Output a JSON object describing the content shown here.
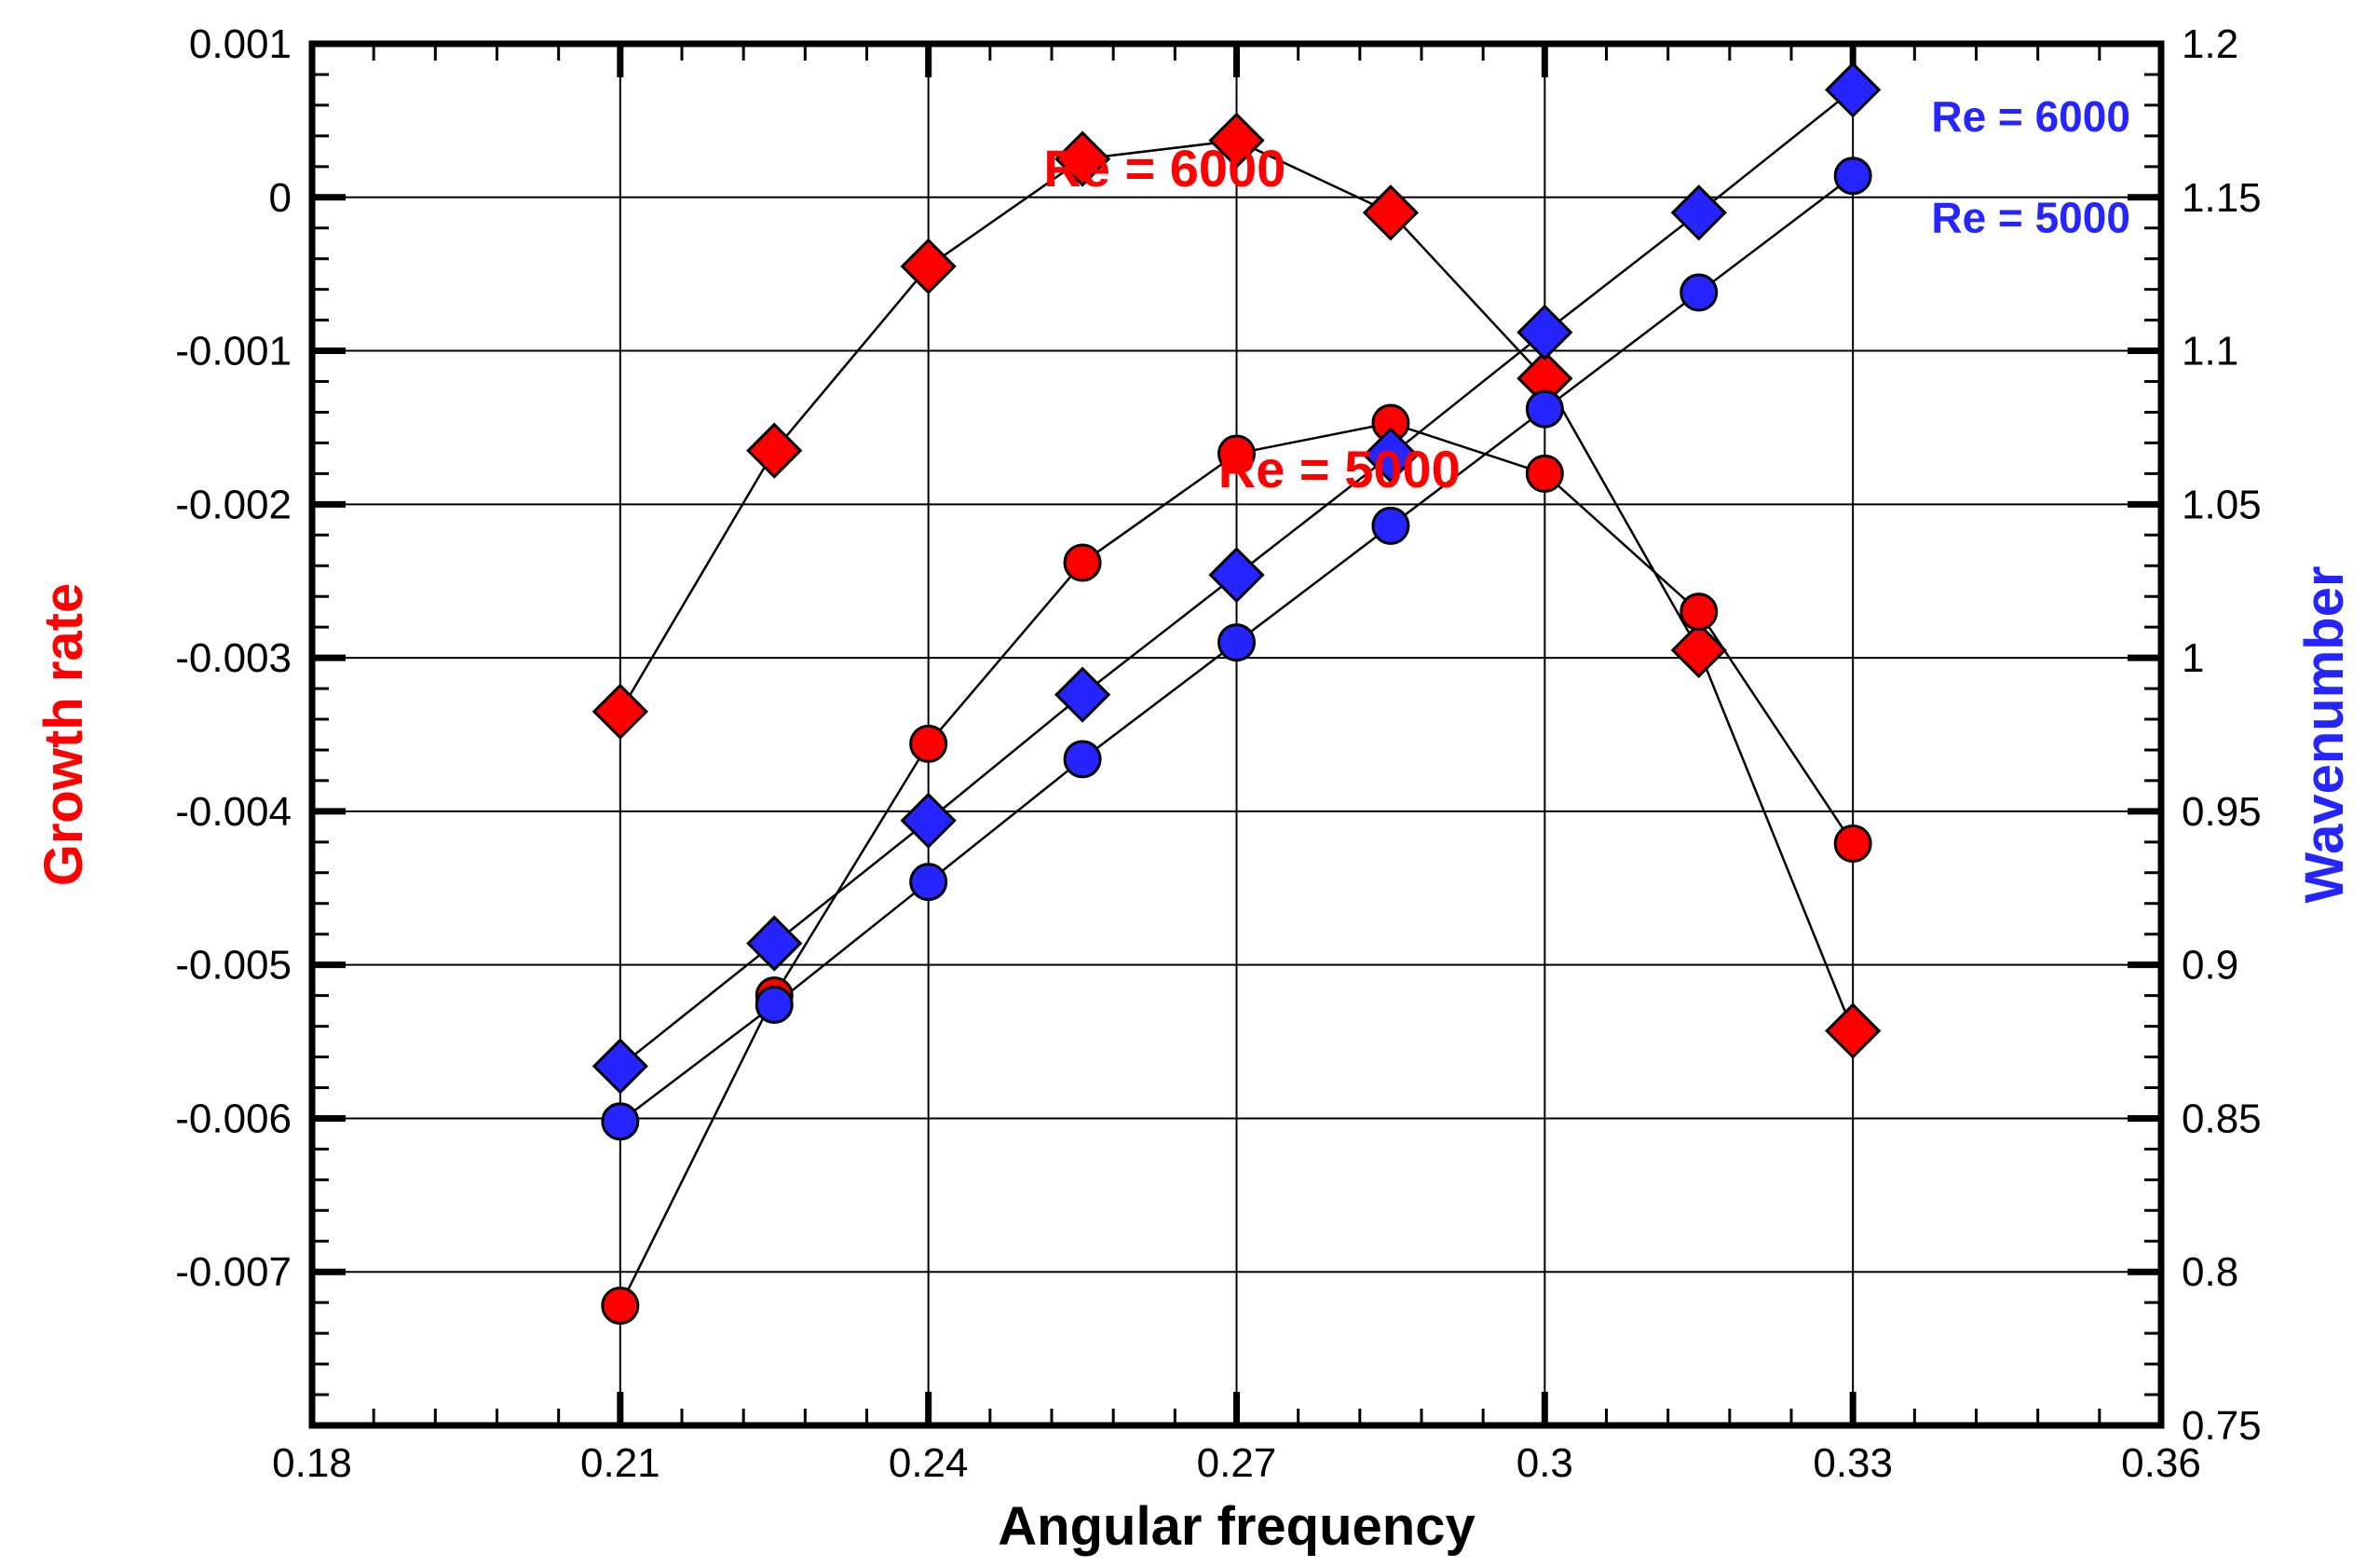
{
  "chart_data": {
    "type": "scatter",
    "title": "",
    "xlabel": "Angular frequency",
    "ylabel_left": "Growth rate",
    "ylabel_right": "Wavenumber",
    "xlim": [
      0.18,
      0.36
    ],
    "ylim_left": [
      -0.008,
      0.001
    ],
    "ylim_right": [
      0.75,
      1.2
    ],
    "grid": true,
    "x_ticks": [
      "0.18",
      "0.21",
      "0.24",
      "0.27",
      "0.3",
      "0.33",
      "0.36"
    ],
    "x_tick_values": [
      0.18,
      0.21,
      0.24,
      0.27,
      0.3,
      0.33,
      0.36
    ],
    "left_ticks": [
      "0.001",
      "0",
      "-0.001",
      "-0.002",
      "-0.003",
      "-0.004",
      "-0.005",
      "-0.006",
      "-0.007"
    ],
    "left_tick_values": [
      0.001,
      0,
      -0.001,
      -0.002,
      -0.003,
      -0.004,
      -0.005,
      -0.006,
      -0.007
    ],
    "right_ticks": [
      "1.2",
      "1.15",
      "1.1",
      "1.05",
      "1",
      "0.95",
      "0.9",
      "0.85",
      "0.8",
      "0.75"
    ],
    "right_tick_values": [
      1.2,
      1.15,
      1.1,
      1.05,
      1.0,
      0.95,
      0.9,
      0.85,
      0.8,
      0.75
    ],
    "series": [
      {
        "name": "Growth rate, Re = 6000",
        "axis": "left",
        "marker": "diamond",
        "color": "#ff0000",
        "x": [
          0.21,
          0.225,
          0.24,
          0.255,
          0.27,
          0.285,
          0.3,
          0.315,
          0.33
        ],
        "y": [
          -0.00335,
          -0.00165,
          -0.00045,
          0.00025,
          0.00037,
          -0.0001,
          -0.00118,
          -0.00295,
          -0.00543
        ]
      },
      {
        "name": "Growth rate, Re = 5000",
        "axis": "left",
        "marker": "circle",
        "color": "#ff0000",
        "x": [
          0.21,
          0.225,
          0.24,
          0.255,
          0.27,
          0.285,
          0.3,
          0.315,
          0.33
        ],
        "y": [
          -0.00722,
          -0.0052,
          -0.00356,
          -0.00238,
          -0.00167,
          -0.00147,
          -0.0018,
          -0.0027,
          -0.00421
        ]
      },
      {
        "name": "Wavenumber, Re = 6000",
        "axis": "right",
        "marker": "diamond",
        "color": "#2525ff",
        "x": [
          0.21,
          0.225,
          0.24,
          0.255,
          0.27,
          0.285,
          0.3,
          0.315,
          0.33
        ],
        "y": [
          0.867,
          0.907,
          0.947,
          0.988,
          1.027,
          1.066,
          1.106,
          1.145,
          1.185
        ]
      },
      {
        "name": "Wavenumber, Re = 5000",
        "axis": "right",
        "marker": "circle",
        "color": "#2525ff",
        "x": [
          0.21,
          0.225,
          0.24,
          0.255,
          0.27,
          0.285,
          0.3,
          0.315,
          0.33
        ],
        "y": [
          0.849,
          0.887,
          0.927,
          0.967,
          1.005,
          1.043,
          1.081,
          1.119,
          1.157
        ]
      }
    ],
    "annotations": [
      {
        "text": "Re = 6000",
        "color": "#ff0000",
        "anchor_x": 0.263,
        "anchor_y_left": 0.00018,
        "axis": "left"
      },
      {
        "text": "Re = 5000",
        "color": "#ff0000",
        "anchor_x": 0.28,
        "anchor_y_left": -0.00178,
        "axis": "left"
      },
      {
        "text": "Re = 6000",
        "color": "#2525ff",
        "anchor_x": 0.357,
        "anchor_y_right": 1.177,
        "axis": "right"
      },
      {
        "text": "Re = 5000",
        "color": "#2525ff",
        "anchor_x": 0.357,
        "anchor_y_right": 1.144,
        "axis": "right"
      }
    ]
  }
}
